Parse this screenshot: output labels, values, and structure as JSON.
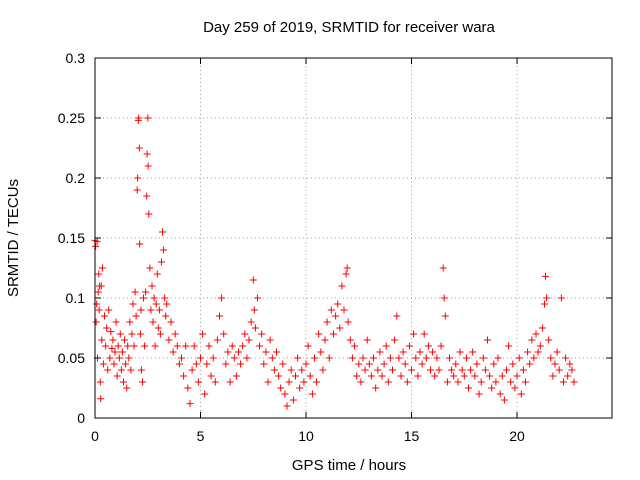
{
  "chart_data": {
    "type": "scatter",
    "title": "Day 259 of 2019, SRMTID for receiver wara",
    "xlabel": "GPS time / hours",
    "ylabel": "SRMTID / TECUs",
    "xlim": [
      0,
      24.5
    ],
    "ylim": [
      0,
      0.3
    ],
    "xticks": [
      0,
      5,
      10,
      15,
      20
    ],
    "xtick_labels": [
      "0",
      "5",
      "10",
      "15",
      "20"
    ],
    "yticks": [
      0,
      0.05,
      0.1,
      0.15,
      0.2,
      0.25,
      0.3
    ],
    "ytick_labels": [
      "0",
      "0.05",
      "0.1",
      "0.15",
      "0.2",
      "0.25",
      "0.3"
    ],
    "grid": true,
    "marker": "+",
    "series_color": "#ff0000",
    "series": [
      {
        "name": "SRMTID",
        "points": [
          [
            0.0,
            0.148
          ],
          [
            0.03,
            0.143
          ],
          [
            0.05,
            0.08
          ],
          [
            0.08,
            0.095
          ],
          [
            0.1,
            0.147
          ],
          [
            0.12,
            0.05
          ],
          [
            0.15,
            0.105
          ],
          [
            0.18,
            0.12
          ],
          [
            0.2,
            0.09
          ],
          [
            0.22,
            0.11
          ],
          [
            0.25,
            0.03
          ],
          [
            0.27,
            0.016
          ],
          [
            0.3,
            0.11
          ],
          [
            0.32,
            0.065
          ],
          [
            0.35,
            0.125
          ],
          [
            0.4,
            0.045
          ],
          [
            0.45,
            0.085
          ],
          [
            0.5,
            0.06
          ],
          [
            0.55,
            0.075
          ],
          [
            0.6,
            0.04
          ],
          [
            0.65,
            0.09
          ],
          [
            0.7,
            0.05
          ],
          [
            0.75,
            0.072
          ],
          [
            0.8,
            0.058
          ],
          [
            0.85,
            0.065
          ],
          [
            0.9,
            0.045
          ],
          [
            0.95,
            0.055
          ],
          [
            1.0,
            0.08
          ],
          [
            1.05,
            0.035
          ],
          [
            1.1,
            0.06
          ],
          [
            1.15,
            0.05
          ],
          [
            1.2,
            0.07
          ],
          [
            1.25,
            0.04
          ],
          [
            1.3,
            0.055
          ],
          [
            1.35,
            0.03
          ],
          [
            1.4,
            0.065
          ],
          [
            1.45,
            0.045
          ],
          [
            1.5,
            0.025
          ],
          [
            1.55,
            0.06
          ],
          [
            1.6,
            0.05
          ],
          [
            1.65,
            0.08
          ],
          [
            1.7,
            0.04
          ],
          [
            1.75,
            0.07
          ],
          [
            1.8,
            0.095
          ],
          [
            1.85,
            0.06
          ],
          [
            1.9,
            0.105
          ],
          [
            1.95,
            0.085
          ],
          [
            2.0,
            0.19
          ],
          [
            2.02,
            0.2
          ],
          [
            2.05,
            0.248
          ],
          [
            2.07,
            0.25
          ],
          [
            2.1,
            0.225
          ],
          [
            2.12,
            0.145
          ],
          [
            2.15,
            0.07
          ],
          [
            2.18,
            0.09
          ],
          [
            2.2,
            0.04
          ],
          [
            2.25,
            0.03
          ],
          [
            2.3,
            0.1
          ],
          [
            2.35,
            0.06
          ],
          [
            2.4,
            0.105
          ],
          [
            2.45,
            0.185
          ],
          [
            2.47,
            0.22
          ],
          [
            2.5,
            0.25
          ],
          [
            2.52,
            0.21
          ],
          [
            2.55,
            0.17
          ],
          [
            2.6,
            0.125
          ],
          [
            2.65,
            0.09
          ],
          [
            2.7,
            0.11
          ],
          [
            2.75,
            0.08
          ],
          [
            2.8,
            0.1
          ],
          [
            2.85,
            0.06
          ],
          [
            2.9,
            0.095
          ],
          [
            2.95,
            0.12
          ],
          [
            3.0,
            0.075
          ],
          [
            3.05,
            0.09
          ],
          [
            3.1,
            0.07
          ],
          [
            3.15,
            0.13
          ],
          [
            3.2,
            0.155
          ],
          [
            3.25,
            0.14
          ],
          [
            3.3,
            0.1
          ],
          [
            3.35,
            0.085
          ],
          [
            3.4,
            0.095
          ],
          [
            3.5,
            0.065
          ],
          [
            3.6,
            0.08
          ],
          [
            3.7,
            0.055
          ],
          [
            3.8,
            0.07
          ],
          [
            3.9,
            0.06
          ],
          [
            4.0,
            0.045
          ],
          [
            4.1,
            0.05
          ],
          [
            4.2,
            0.035
          ],
          [
            4.3,
            0.06
          ],
          [
            4.4,
            0.025
          ],
          [
            4.5,
            0.012
          ],
          [
            4.6,
            0.04
          ],
          [
            4.7,
            0.06
          ],
          [
            4.8,
            0.045
          ],
          [
            4.9,
            0.03
          ],
          [
            5.0,
            0.05
          ],
          [
            5.1,
            0.07
          ],
          [
            5.2,
            0.02
          ],
          [
            5.3,
            0.045
          ],
          [
            5.4,
            0.06
          ],
          [
            5.5,
            0.035
          ],
          [
            5.6,
            0.05
          ],
          [
            5.7,
            0.03
          ],
          [
            5.8,
            0.065
          ],
          [
            5.9,
            0.085
          ],
          [
            6.0,
            0.1
          ],
          [
            6.1,
            0.07
          ],
          [
            6.2,
            0.045
          ],
          [
            6.3,
            0.055
          ],
          [
            6.4,
            0.03
          ],
          [
            6.5,
            0.06
          ],
          [
            6.6,
            0.05
          ],
          [
            6.7,
            0.035
          ],
          [
            6.8,
            0.055
          ],
          [
            6.9,
            0.045
          ],
          [
            7.0,
            0.06
          ],
          [
            7.1,
            0.07
          ],
          [
            7.2,
            0.05
          ],
          [
            7.3,
            0.065
          ],
          [
            7.4,
            0.08
          ],
          [
            7.5,
            0.115
          ],
          [
            7.55,
            0.09
          ],
          [
            7.6,
            0.075
          ],
          [
            7.7,
            0.1
          ],
          [
            7.8,
            0.06
          ],
          [
            7.9,
            0.07
          ],
          [
            8.0,
            0.045
          ],
          [
            8.1,
            0.055
          ],
          [
            8.2,
            0.03
          ],
          [
            8.3,
            0.065
          ],
          [
            8.4,
            0.05
          ],
          [
            8.5,
            0.04
          ],
          [
            8.6,
            0.055
          ],
          [
            8.7,
            0.035
          ],
          [
            8.8,
            0.025
          ],
          [
            8.9,
            0.045
          ],
          [
            9.0,
            0.02
          ],
          [
            9.1,
            0.01
          ],
          [
            9.2,
            0.03
          ],
          [
            9.3,
            0.04
          ],
          [
            9.4,
            0.015
          ],
          [
            9.5,
            0.035
          ],
          [
            9.6,
            0.05
          ],
          [
            9.7,
            0.025
          ],
          [
            9.8,
            0.04
          ],
          [
            9.9,
            0.03
          ],
          [
            10.0,
            0.045
          ],
          [
            10.1,
            0.06
          ],
          [
            10.2,
            0.035
          ],
          [
            10.3,
            0.02
          ],
          [
            10.4,
            0.05
          ],
          [
            10.5,
            0.03
          ],
          [
            10.6,
            0.07
          ],
          [
            10.7,
            0.055
          ],
          [
            10.8,
            0.04
          ],
          [
            10.9,
            0.065
          ],
          [
            11.0,
            0.08
          ],
          [
            11.1,
            0.05
          ],
          [
            11.2,
            0.09
          ],
          [
            11.3,
            0.07
          ],
          [
            11.4,
            0.085
          ],
          [
            11.5,
            0.095
          ],
          [
            11.6,
            0.075
          ],
          [
            11.7,
            0.11
          ],
          [
            11.8,
            0.09
          ],
          [
            11.9,
            0.12
          ],
          [
            11.95,
            0.125
          ],
          [
            12.0,
            0.08
          ],
          [
            12.1,
            0.065
          ],
          [
            12.2,
            0.05
          ],
          [
            12.3,
            0.06
          ],
          [
            12.4,
            0.035
          ],
          [
            12.5,
            0.045
          ],
          [
            12.6,
            0.03
          ],
          [
            12.7,
            0.05
          ],
          [
            12.8,
            0.04
          ],
          [
            12.9,
            0.065
          ],
          [
            13.0,
            0.045
          ],
          [
            13.1,
            0.035
          ],
          [
            13.2,
            0.05
          ],
          [
            13.3,
            0.025
          ],
          [
            13.4,
            0.04
          ],
          [
            13.5,
            0.055
          ],
          [
            13.6,
            0.035
          ],
          [
            13.7,
            0.045
          ],
          [
            13.8,
            0.06
          ],
          [
            13.9,
            0.03
          ],
          [
            14.0,
            0.05
          ],
          [
            14.1,
            0.04
          ],
          [
            14.2,
            0.065
          ],
          [
            14.3,
            0.085
          ],
          [
            14.4,
            0.05
          ],
          [
            14.5,
            0.035
          ],
          [
            14.6,
            0.055
          ],
          [
            14.7,
            0.045
          ],
          [
            14.8,
            0.03
          ],
          [
            14.9,
            0.06
          ],
          [
            15.0,
            0.04
          ],
          [
            15.1,
            0.07
          ],
          [
            15.2,
            0.05
          ],
          [
            15.3,
            0.035
          ],
          [
            15.4,
            0.055
          ],
          [
            15.5,
            0.045
          ],
          [
            15.6,
            0.07
          ],
          [
            15.7,
            0.05
          ],
          [
            15.8,
            0.06
          ],
          [
            15.9,
            0.04
          ],
          [
            16.0,
            0.055
          ],
          [
            16.1,
            0.035
          ],
          [
            16.2,
            0.05
          ],
          [
            16.3,
            0.04
          ],
          [
            16.4,
            0.06
          ],
          [
            16.5,
            0.125
          ],
          [
            16.55,
            0.1
          ],
          [
            16.6,
            0.085
          ],
          [
            16.7,
            0.03
          ],
          [
            16.8,
            0.05
          ],
          [
            16.9,
            0.04
          ],
          [
            17.0,
            0.035
          ],
          [
            17.1,
            0.045
          ],
          [
            17.2,
            0.03
          ],
          [
            17.3,
            0.055
          ],
          [
            17.4,
            0.04
          ],
          [
            17.5,
            0.035
          ],
          [
            17.6,
            0.05
          ],
          [
            17.7,
            0.025
          ],
          [
            17.8,
            0.04
          ],
          [
            17.9,
            0.055
          ],
          [
            18.0,
            0.035
          ],
          [
            18.1,
            0.045
          ],
          [
            18.2,
            0.02
          ],
          [
            18.3,
            0.03
          ],
          [
            18.4,
            0.05
          ],
          [
            18.5,
            0.04
          ],
          [
            18.6,
            0.065
          ],
          [
            18.7,
            0.035
          ],
          [
            18.8,
            0.025
          ],
          [
            18.9,
            0.045
          ],
          [
            19.0,
            0.03
          ],
          [
            19.1,
            0.05
          ],
          [
            19.2,
            0.02
          ],
          [
            19.3,
            0.035
          ],
          [
            19.4,
            0.015
          ],
          [
            19.5,
            0.04
          ],
          [
            19.6,
            0.06
          ],
          [
            19.7,
            0.03
          ],
          [
            19.8,
            0.045
          ],
          [
            19.9,
            0.025
          ],
          [
            20.0,
            0.035
          ],
          [
            20.1,
            0.05
          ],
          [
            20.2,
            0.02
          ],
          [
            20.3,
            0.04
          ],
          [
            20.4,
            0.03
          ],
          [
            20.5,
            0.055
          ],
          [
            20.6,
            0.045
          ],
          [
            20.7,
            0.065
          ],
          [
            20.8,
            0.05
          ],
          [
            20.9,
            0.07
          ],
          [
            21.0,
            0.055
          ],
          [
            21.1,
            0.06
          ],
          [
            21.2,
            0.075
          ],
          [
            21.3,
            0.095
          ],
          [
            21.35,
            0.118
          ],
          [
            21.4,
            0.1
          ],
          [
            21.5,
            0.065
          ],
          [
            21.6,
            0.05
          ],
          [
            21.7,
            0.035
          ],
          [
            21.8,
            0.045
          ],
          [
            21.9,
            0.055
          ],
          [
            22.0,
            0.04
          ],
          [
            22.1,
            0.1
          ],
          [
            22.2,
            0.03
          ],
          [
            22.3,
            0.05
          ],
          [
            22.4,
            0.035
          ],
          [
            22.5,
            0.045
          ],
          [
            22.6,
            0.04
          ],
          [
            22.7,
            0.03
          ]
        ]
      }
    ]
  }
}
